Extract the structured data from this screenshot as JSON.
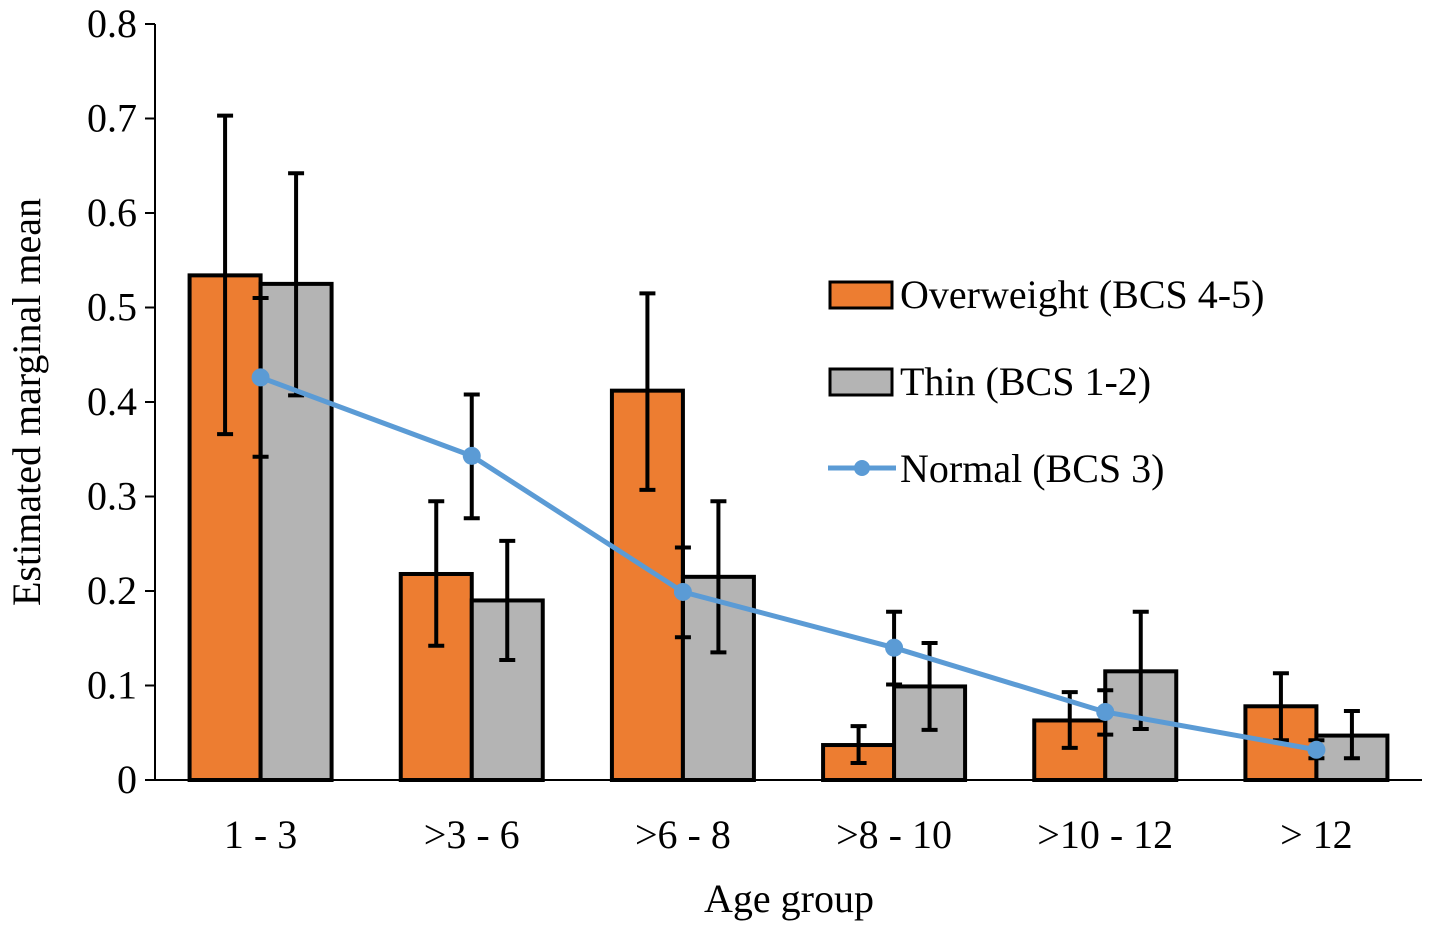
{
  "chart_data": {
    "type": "bar",
    "title": "",
    "xlabel": "Age group",
    "ylabel": "Estimated marginal mean",
    "ylim": [
      0,
      0.8
    ],
    "yticks": [
      "0",
      "0.1",
      "0.2",
      "0.3",
      "0.4",
      "0.5",
      "0.6",
      "0.7",
      "0.8"
    ],
    "categories": [
      "1 - 3",
      ">3 - 6",
      ">6 - 8",
      ">8 - 10",
      ">10 - 12",
      "> 12"
    ],
    "legend_position": "right",
    "series": [
      {
        "name": "Overweight (BCS 4-5)",
        "kind": "bar",
        "color": "#ED7D31",
        "values": [
          0.534,
          0.218,
          0.412,
          0.037,
          0.063,
          0.078
        ],
        "err_low": [
          0.366,
          0.142,
          0.307,
          0.018,
          0.034,
          0.042
        ],
        "err_high": [
          0.703,
          0.295,
          0.515,
          0.057,
          0.093,
          0.113
        ]
      },
      {
        "name": "Thin (BCS 1-2)",
        "kind": "bar",
        "color": "#B4B4B4",
        "values": [
          0.525,
          0.19,
          0.215,
          0.099,
          0.115,
          0.047
        ],
        "err_low": [
          0.407,
          0.127,
          0.135,
          0.053,
          0.054,
          0.023
        ],
        "err_high": [
          0.642,
          0.253,
          0.295,
          0.145,
          0.178,
          0.073
        ]
      },
      {
        "name": "Normal (BCS 3)",
        "kind": "line",
        "color": "#5B9BD5",
        "values": [
          0.426,
          0.343,
          0.199,
          0.14,
          0.072,
          0.032
        ],
        "err_low": [
          0.342,
          0.277,
          0.151,
          0.101,
          0.048,
          0.023
        ],
        "err_high": [
          0.51,
          0.408,
          0.246,
          0.178,
          0.095,
          0.042
        ]
      }
    ]
  }
}
